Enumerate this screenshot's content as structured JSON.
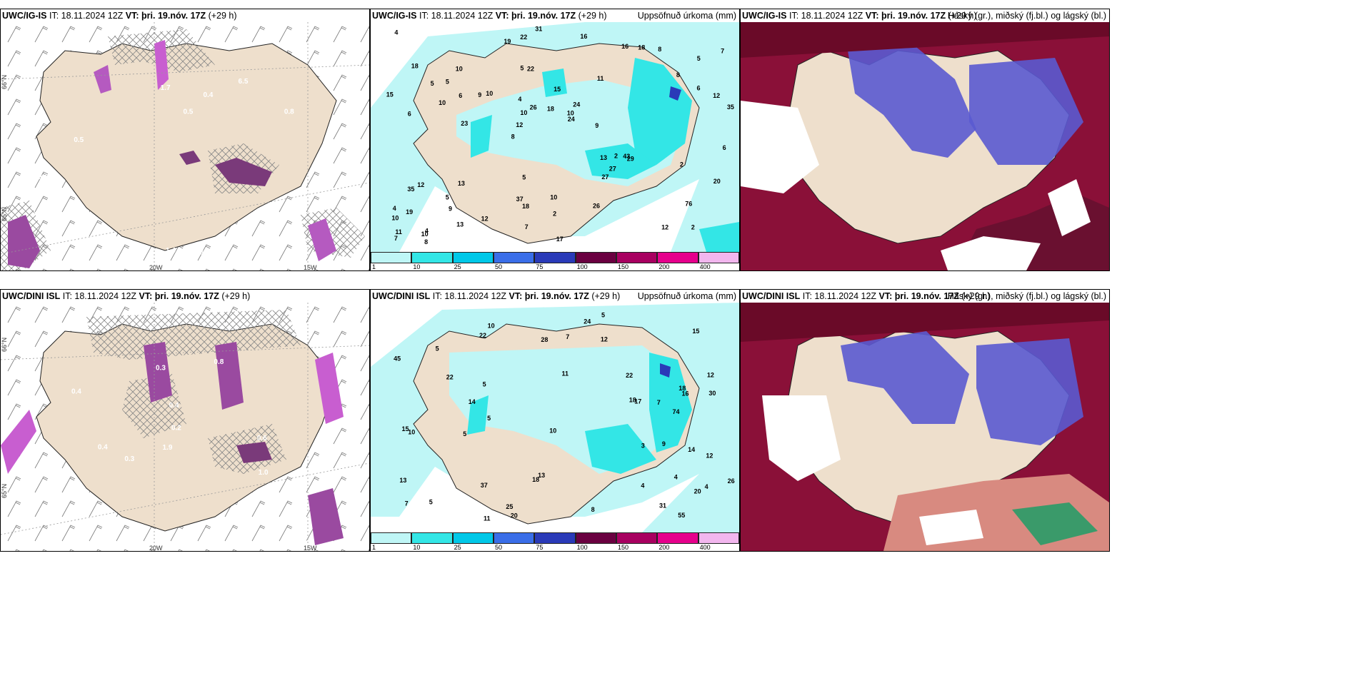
{
  "panels": [
    {
      "model": "UWC/IG-IS",
      "it": "IT: 18.11.2024 12Z",
      "vt_label": "VT:",
      "vt": "þri. 19.nóv. 17Z",
      "lead": "(+29 h)",
      "right": ""
    },
    {
      "model": "UWC/IG-IS",
      "it": "IT: 18.11.2024 12Z",
      "vt_label": "VT:",
      "vt": "þri. 19.nóv. 17Z",
      "lead": "(+29 h)",
      "right": "Uppsöfnuð úrkoma (mm)"
    },
    {
      "model": "UWC/IG-IS",
      "it": "IT: 18.11.2024 12Z",
      "vt_label": "VT:",
      "vt": "þri. 19.nóv. 17Z",
      "lead": "(+29 h)",
      "right": "Háský (gr.), miðský (fj.bl.) og lágský (bl.)"
    },
    {
      "model": "UWC/DINI ISL",
      "it": "IT: 18.11.2024 12Z",
      "vt_label": "VT:",
      "vt": "þri. 19.nóv. 17Z",
      "lead": "(+29 h)",
      "right": ""
    },
    {
      "model": "UWC/DINI ISL",
      "it": "IT: 18.11.2024 12Z",
      "vt_label": "VT:",
      "vt": "þri. 19.nóv. 17Z",
      "lead": "(+29 h)",
      "right": "Uppsöfnuð úrkoma (mm)"
    },
    {
      "model": "UWC/DINI ISL",
      "it": "IT: 18.11.2024 12Z",
      "vt_label": "VT:",
      "vt": "þri. 19.nóv. 17Z",
      "lead": "(+29 h)",
      "right": "Háský (gr.), miðský (fj.bl.) og lágský (bl.)"
    }
  ],
  "axis_labels": {
    "lat_66": "66°N",
    "lat_65": "65°N",
    "lon_20": "20W",
    "lon_15": "15W"
  },
  "legend": {
    "ticks": [
      "1",
      "10",
      "25",
      "50",
      "75",
      "100",
      "150",
      "200",
      "400"
    ],
    "colors": [
      "#bff6f6",
      "#33e6e6",
      "#00c8e8",
      "#3a6ee8",
      "#2a3ab8",
      "#6a0040",
      "#a80060",
      "#e6008c",
      "#f2b6ee"
    ]
  },
  "wind_top_labels": [
    "0.5",
    "0.6",
    "0.6",
    "0.8",
    "1.4",
    "1.7",
    "3.4",
    "6.5",
    "0.5",
    "1.3",
    "5.2",
    "0.4"
  ],
  "wind_bottom_labels": [
    "0.4",
    "0.8",
    "1.0",
    "2.1",
    "0.6",
    "1.9",
    "0.3",
    "0.2",
    "0.5",
    "0.4",
    "0.3",
    "0.4",
    "0.8",
    "1.1",
    "0.4"
  ],
  "precip_top_values": [
    "2",
    "6",
    "5",
    "8",
    "11",
    "4",
    "5",
    "15",
    "12",
    "10",
    "10",
    "9",
    "22",
    "24",
    "29",
    "18",
    "22",
    "35",
    "13",
    "6",
    "12",
    "37",
    "10",
    "10",
    "16",
    "13",
    "12",
    "76",
    "43",
    "17",
    "9",
    "10",
    "27",
    "13",
    "12",
    "10",
    "11",
    "18",
    "24",
    "35",
    "8",
    "7",
    "27",
    "26",
    "5",
    "8",
    "7",
    "10",
    "8",
    "31",
    "23",
    "15",
    "5",
    "18",
    "10",
    "16",
    "19",
    "26",
    "20",
    "5",
    "12",
    "2",
    "6",
    "4",
    "4",
    "5",
    "6",
    "4",
    "2",
    "18",
    "19",
    "9",
    "2",
    "7"
  ],
  "precip_bottom_values": [
    "4",
    "12",
    "4",
    "11",
    "7",
    "10",
    "18",
    "37",
    "15",
    "22",
    "30",
    "45",
    "74",
    "20",
    "13",
    "5",
    "20",
    "22",
    "13",
    "16",
    "15",
    "10",
    "8",
    "18",
    "25",
    "18",
    "24",
    "12",
    "22",
    "26",
    "5",
    "4",
    "11",
    "10",
    "14",
    "31",
    "17",
    "28",
    "55",
    "5",
    "9",
    "7",
    "7",
    "14",
    "12",
    "3",
    "5",
    "5",
    "5"
  ]
}
